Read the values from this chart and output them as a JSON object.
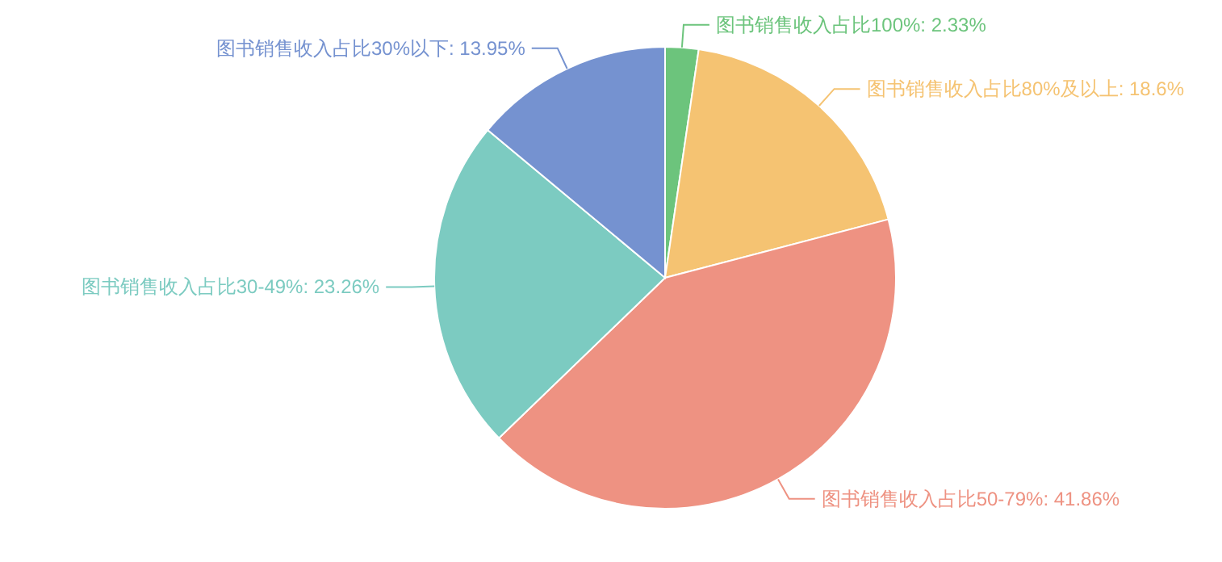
{
  "chart_data": {
    "type": "pie",
    "categories": [
      "图书销售收入占比100%",
      "图书销售收入占比80%及以上",
      "图书销售收入占比50-79%",
      "图书销售收入占比30-49%",
      "图书销售收入占比30%以下"
    ],
    "values": [
      2.33,
      18.6,
      41.86,
      23.26,
      13.95
    ],
    "value_labels": [
      ": 2.33%",
      ": 18.6%",
      ": 41.86%",
      ": 23.26%",
      ": 13.95%"
    ],
    "colors": [
      "#6cc47c",
      "#f5c372",
      "#ee9282",
      "#7ccbc1",
      "#7592d0"
    ]
  }
}
